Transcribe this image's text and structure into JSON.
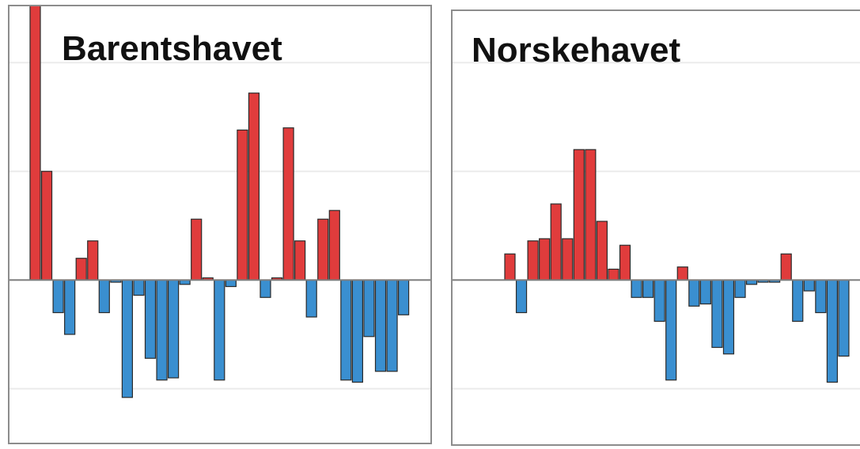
{
  "chart_data": [
    {
      "type": "bar",
      "title": "Barentshavet",
      "xlabel": "",
      "ylabel": "",
      "ylim": [
        -1.25,
        1.75
      ],
      "yticks": [
        -1,
        -0.5,
        0,
        0.5,
        1,
        1.5
      ],
      "grid": true,
      "colors": {
        "positive": "#e03c3c",
        "negative": "#3a8fd0"
      },
      "values": [
        1.35,
        0.5,
        -0.15,
        -0.25,
        0.1,
        0.18,
        -0.15,
        -0.01,
        -0.54,
        -0.07,
        -0.36,
        -0.46,
        -0.45,
        -0.02,
        0.28,
        0.01,
        -0.46,
        -0.03,
        0.69,
        0.86,
        -0.08,
        0.01,
        0.7,
        0.18,
        -0.17,
        0.28,
        0.32,
        -0.46,
        -0.47,
        -0.26,
        -0.42,
        -0.42,
        -0.16
      ]
    },
    {
      "type": "bar",
      "title": "Norskehavet",
      "xlabel": "",
      "ylabel": "",
      "ylim": [
        -1.25,
        1.75
      ],
      "yticks": [
        -1,
        -0.5,
        0,
        0.5,
        1,
        1.5
      ],
      "grid": true,
      "colors": {
        "positive": "#e03c3c",
        "negative": "#3a8fd0"
      },
      "values": [
        0.12,
        -0.15,
        0.18,
        0.19,
        0.35,
        0.19,
        0.6,
        0.6,
        0.27,
        0.05,
        0.16,
        -0.08,
        -0.08,
        -0.19,
        -0.46,
        0.06,
        -0.12,
        -0.11,
        -0.31,
        -0.34,
        -0.08,
        -0.02,
        -0.01,
        -0.01,
        0.12,
        -0.19,
        -0.05,
        -0.15,
        -0.47,
        -0.35
      ]
    }
  ]
}
